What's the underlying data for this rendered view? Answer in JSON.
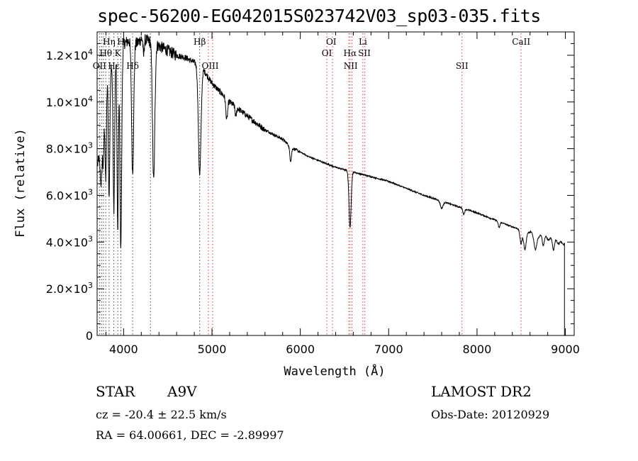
{
  "header": {
    "title": "spec-56200-EG042015S023742V03_sp03-035.fits"
  },
  "info": {
    "object_class": "STAR",
    "subclass": "A9V",
    "survey": "LAMOST DR2",
    "cz": "cz = -20.4 ± 22.5 km/s",
    "obs_date": "Obs-Date: 20120929",
    "radec": "RA =  64.00661, DEC =  -2.89997"
  },
  "chart_data": {
    "type": "line",
    "title": "spec-56200-EG042015S023742V03_sp03-035.fits",
    "xlabel": "Wavelength (Å)",
    "ylabel": "Flux (relative)",
    "xlim": [
      3700,
      9100
    ],
    "ylim": [
      0,
      13000
    ],
    "grid": false,
    "x_ticks": [
      {
        "value": 4000,
        "label": "4000"
      },
      {
        "value": 5000,
        "label": "5000"
      },
      {
        "value": 6000,
        "label": "6000"
      },
      {
        "value": 7000,
        "label": "7000"
      },
      {
        "value": 8000,
        "label": "8000"
      },
      {
        "value": 9000,
        "label": "9000"
      }
    ],
    "y_ticks": [
      {
        "value": 0,
        "mant": "0",
        "exp": ""
      },
      {
        "value": 2000,
        "mant": "2.0×10",
        "exp": "3"
      },
      {
        "value": 4000,
        "mant": "4.0×10",
        "exp": "3"
      },
      {
        "value": 6000,
        "mant": "6.0×10",
        "exp": "3"
      },
      {
        "value": 8000,
        "mant": "8.0×10",
        "exp": "3"
      },
      {
        "value": 10000,
        "mant": "1.0×10",
        "exp": "4"
      },
      {
        "value": 12000,
        "mant": "1.2×10",
        "exp": "4"
      }
    ],
    "continuum": [
      [
        3700,
        7200
      ],
      [
        3720,
        7600
      ],
      [
        3740,
        6800
      ],
      [
        3760,
        8200
      ],
      [
        3780,
        9200
      ],
      [
        3800,
        10200
      ],
      [
        3820,
        11200
      ],
      [
        3840,
        10800
      ],
      [
        3860,
        11600
      ],
      [
        3880,
        12000
      ],
      [
        3900,
        11800
      ],
      [
        3920,
        12200
      ],
      [
        3950,
        12300
      ],
      [
        4000,
        12500
      ],
      [
        4050,
        12600
      ],
      [
        4100,
        12700
      ],
      [
        4150,
        12500
      ],
      [
        4200,
        12700
      ],
      [
        4300,
        12600
      ],
      [
        4400,
        12400
      ],
      [
        4500,
        12200
      ],
      [
        4600,
        12000
      ],
      [
        4700,
        11900
      ],
      [
        4800,
        11700
      ],
      [
        4900,
        11400
      ],
      [
        5000,
        10800
      ],
      [
        5100,
        10400
      ],
      [
        5200,
        10000
      ],
      [
        5300,
        9700
      ],
      [
        5400,
        9400
      ],
      [
        5500,
        9100
      ],
      [
        5600,
        8800
      ],
      [
        5700,
        8600
      ],
      [
        5800,
        8400
      ],
      [
        5900,
        8050
      ],
      [
        6000,
        7850
      ],
      [
        6100,
        7650
      ],
      [
        6200,
        7500
      ],
      [
        6300,
        7350
      ],
      [
        6400,
        7200
      ],
      [
        6500,
        7100
      ],
      [
        6600,
        7000
      ],
      [
        6700,
        6900
      ],
      [
        6800,
        6800
      ],
      [
        7000,
        6600
      ],
      [
        7200,
        6300
      ],
      [
        7400,
        6000
      ],
      [
        7600,
        5750
      ],
      [
        7800,
        5500
      ],
      [
        8000,
        5250
      ],
      [
        8200,
        4950
      ],
      [
        8400,
        4650
      ],
      [
        8600,
        4400
      ],
      [
        8800,
        4150
      ],
      [
        8950,
        3950
      ]
    ],
    "absorption_lines": [
      {
        "center": 3750,
        "depth": 900,
        "width": 6
      },
      {
        "center": 3770,
        "depth": 1500,
        "width": 6
      },
      {
        "center": 3798,
        "depth": 3500,
        "width": 7
      },
      {
        "center": 3835,
        "depth": 5000,
        "width": 8
      },
      {
        "center": 3889,
        "depth": 6500,
        "width": 9
      },
      {
        "center": 3933,
        "depth": 7800,
        "width": 8
      },
      {
        "center": 3968,
        "depth": 8500,
        "width": 10
      },
      {
        "center": 4102,
        "depth": 5700,
        "width": 12
      },
      {
        "center": 4226,
        "depth": 700,
        "width": 6
      },
      {
        "center": 4340,
        "depth": 5900,
        "width": 13
      },
      {
        "center": 4861,
        "depth": 4600,
        "width": 15
      },
      {
        "center": 5167,
        "depth": 900,
        "width": 10
      },
      {
        "center": 5270,
        "depth": 400,
        "width": 8
      },
      {
        "center": 5890,
        "depth": 600,
        "width": 10
      },
      {
        "center": 6563,
        "depth": 2400,
        "width": 12
      },
      {
        "center": 7600,
        "depth": 300,
        "width": 15
      },
      {
        "center": 7850,
        "depth": 250,
        "width": 10
      },
      {
        "center": 8250,
        "depth": 250,
        "width": 10
      },
      {
        "center": 8498,
        "depth": 600,
        "width": 12
      },
      {
        "center": 8542,
        "depth": 800,
        "width": 14
      },
      {
        "center": 8662,
        "depth": 700,
        "width": 14
      },
      {
        "center": 8750,
        "depth": 300,
        "width": 10
      },
      {
        "center": 8865,
        "depth": 350,
        "width": 10
      }
    ],
    "edge_drop": {
      "x": 8990,
      "to": 0
    },
    "line_markers": [
      {
        "label": "Hη",
        "x": 3835,
        "row": 1
      },
      {
        "label": "H",
        "x": 3969,
        "row": 1
      },
      {
        "label": "Hθ",
        "x": 3798,
        "row": 2
      },
      {
        "label": "K",
        "x": 3934,
        "row": 2
      },
      {
        "label": "OII",
        "x": 3727,
        "row": 3
      },
      {
        "label": "Hε",
        "x": 3890,
        "row": 3
      },
      {
        "label": "Hδ",
        "x": 4102,
        "row": 3
      },
      {
        "label": "Hβ",
        "x": 4861,
        "row": 1
      },
      {
        "label": "OIII",
        "x": 4980,
        "row": 3
      },
      {
        "label": "OI",
        "x": 6350,
        "row": 1
      },
      {
        "label": "OI",
        "x": 6300,
        "row": 2
      },
      {
        "label": "Li",
        "x": 6708,
        "row": 1
      },
      {
        "label": "Hα",
        "x": 6563,
        "row": 2
      },
      {
        "label": "SII",
        "x": 6725,
        "row": 2
      },
      {
        "label": "NII",
        "x": 6570,
        "row": 3
      },
      {
        "label": "SII",
        "x": 7830,
        "row": 3
      },
      {
        "label": "CaII",
        "x": 8500,
        "row": 1
      }
    ],
    "marker_lines": [
      {
        "x": 3727,
        "style": "black"
      },
      {
        "x": 3750,
        "style": "black"
      },
      {
        "x": 3771,
        "style": "black"
      },
      {
        "x": 3798,
        "style": "black"
      },
      {
        "x": 3835,
        "style": "black"
      },
      {
        "x": 3889,
        "style": "black"
      },
      {
        "x": 3934,
        "style": "black"
      },
      {
        "x": 3969,
        "style": "black"
      },
      {
        "x": 4102,
        "style": "black"
      },
      {
        "x": 4304,
        "style": "black"
      },
      {
        "x": 4861,
        "style": "black"
      },
      {
        "x": 4959,
        "style": "red"
      },
      {
        "x": 5007,
        "style": "red"
      },
      {
        "x": 6300,
        "style": "red"
      },
      {
        "x": 6364,
        "style": "red"
      },
      {
        "x": 6548,
        "style": "red"
      },
      {
        "x": 6563,
        "style": "red"
      },
      {
        "x": 6584,
        "style": "red"
      },
      {
        "x": 6708,
        "style": "red"
      },
      {
        "x": 6731,
        "style": "red"
      },
      {
        "x": 7830,
        "style": "red"
      },
      {
        "x": 8498,
        "style": "red"
      }
    ],
    "colors": {
      "spectrum": "#000000",
      "marker_red": "#d02020",
      "marker_black": "#333333"
    }
  }
}
